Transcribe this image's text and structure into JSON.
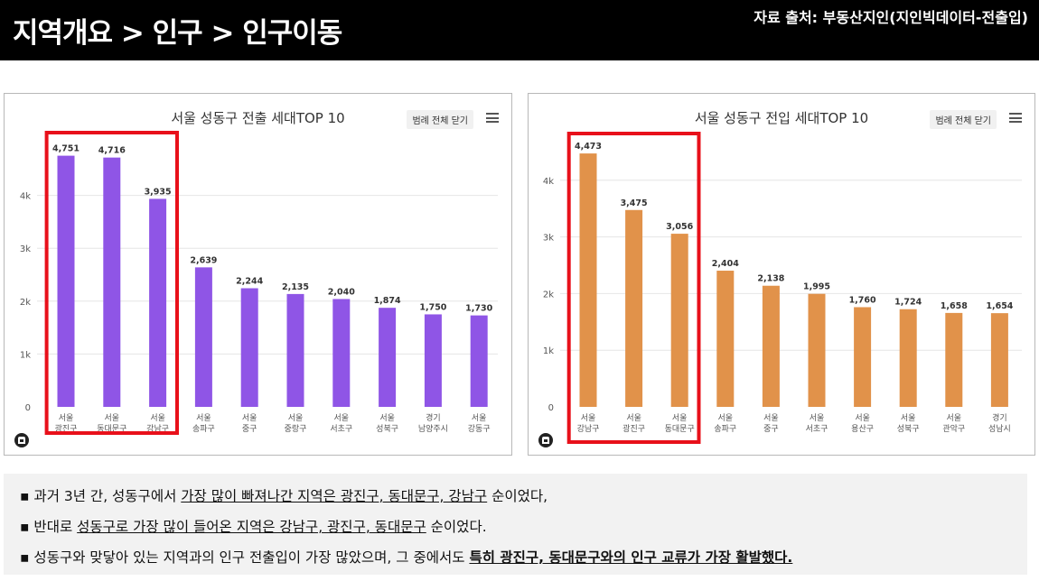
{
  "header": {
    "title": "지역개요 > 인구 > 인구이동",
    "source": "자료 출처: 부동산지인(지인빅데이터-전출입)"
  },
  "charts": {
    "legend_button_label": "범례 전체 닫기"
  },
  "colors": {
    "out_bar": "#8f55e6",
    "in_bar": "#e1924a",
    "highlight_box": "#e8101a",
    "grid": "#e6e6e6"
  },
  "chart_data": [
    {
      "type": "bar",
      "title": "서울 성동구 전출 세대TOP 10",
      "categories": [
        [
          "서울",
          "광진구"
        ],
        [
          "서울",
          "동대문구"
        ],
        [
          "서울",
          "강남구"
        ],
        [
          "서울",
          "송파구"
        ],
        [
          "서울",
          "중구"
        ],
        [
          "서울",
          "중랑구"
        ],
        [
          "서울",
          "서초구"
        ],
        [
          "서울",
          "성북구"
        ],
        [
          "경기",
          "남양주시"
        ],
        [
          "서울",
          "강동구"
        ]
      ],
      "values": [
        4751,
        4716,
        3935,
        2639,
        2244,
        2135,
        2040,
        1874,
        1750,
        1730
      ],
      "value_labels": [
        "4,751",
        "4,716",
        "3,935",
        "2,639",
        "2,244",
        "2,135",
        "2,040",
        "1,874",
        "1,750",
        "1,730"
      ],
      "y_ticks": [
        "0",
        "1k",
        "2k",
        "3k",
        "4k"
      ],
      "ylim": [
        0,
        4800
      ],
      "grid": true,
      "highlighted_categories": [
        0,
        1,
        2
      ]
    },
    {
      "type": "bar",
      "title": "서울 성동구 전입 세대TOP 10",
      "categories": [
        [
          "서울",
          "강남구"
        ],
        [
          "서울",
          "광진구"
        ],
        [
          "서울",
          "동대문구"
        ],
        [
          "서울",
          "송파구"
        ],
        [
          "서울",
          "중구"
        ],
        [
          "서울",
          "서초구"
        ],
        [
          "서울",
          "용산구"
        ],
        [
          "서울",
          "성북구"
        ],
        [
          "서울",
          "관악구"
        ],
        [
          "경기",
          "성남시"
        ]
      ],
      "values": [
        4473,
        3475,
        3056,
        2404,
        2138,
        1995,
        1760,
        1724,
        1658,
        1654
      ],
      "value_labels": [
        "4,473",
        "3,475",
        "3,056",
        "2,404",
        "2,138",
        "1,995",
        "1,760",
        "1,724",
        "1,658",
        "1,654"
      ],
      "y_ticks": [
        "0",
        "1k",
        "2k",
        "3k",
        "4k"
      ],
      "ylim": [
        0,
        4500
      ],
      "grid": true,
      "highlighted_categories": [
        0,
        1,
        2
      ]
    }
  ],
  "summary": {
    "line1_a": "▪ 과거 3년 간, 성동구에서 ",
    "line1_b": "가장 많이 빠져나간 지역은 광진구, 동대문구, 강남구",
    "line1_c": " 순이었다,",
    "line2_a": "▪ 반대로 ",
    "line2_b": "성동구로 가장 많이 들어온 지역은 강남구, 광진구, 동대문구",
    "line2_c": " 순이었다.",
    "line3_a": "▪ 성동구와 맞닿아 있는 지역과의 인구 전출입이 가장 많았으며, 그 중에서도 ",
    "line3_b": "특히 광진구, 동대문구와의 인구 교류가 가장 활발했다."
  }
}
